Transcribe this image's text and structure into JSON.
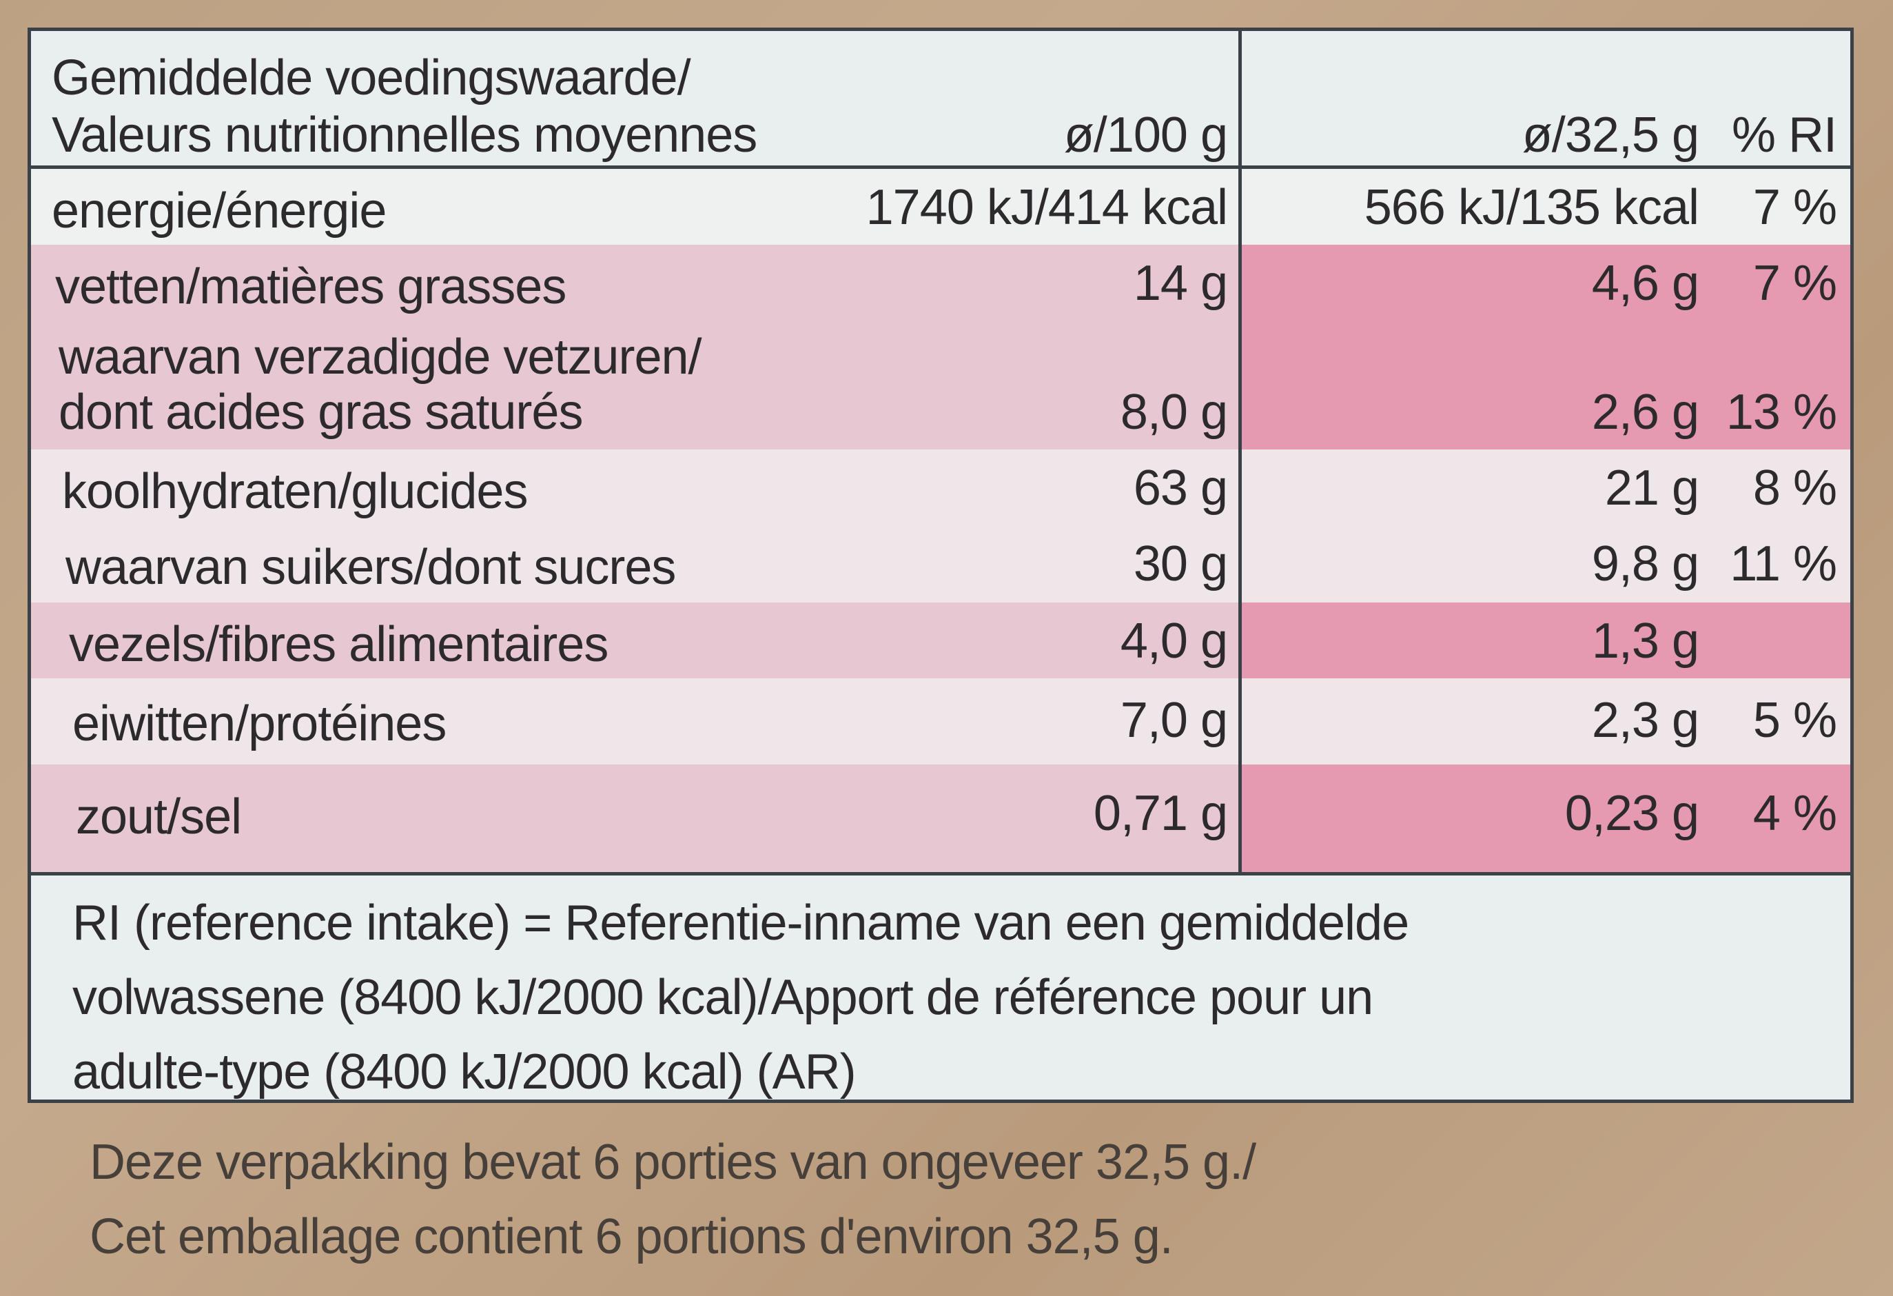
{
  "header": {
    "title_line1": "Gemiddelde voedingswaarde/",
    "title_line2": "Valeurs nutritionnelles moyennes",
    "col_per100": "ø/100 g",
    "col_perportion": "ø/32,5 g",
    "col_ri": "% RI"
  },
  "rows": [
    {
      "label": "energie/énergie",
      "label2": "",
      "per100": "1740 kJ/414 kcal",
      "perportion": "566 kJ/135 kcal",
      "ri": "7 %"
    },
    {
      "label": "vetten/matières grasses",
      "label2": "",
      "per100": "14 g",
      "perportion": "4,6 g",
      "ri": "7 %"
    },
    {
      "label": "waarvan verzadigde vetzuren/",
      "label2": "dont acides gras saturés",
      "per100": "8,0 g",
      "perportion": "2,6 g",
      "ri": "13 %"
    },
    {
      "label": "koolhydraten/glucides",
      "label2": "",
      "per100": "63 g",
      "perportion": "21 g",
      "ri": "8 %"
    },
    {
      "label": "waarvan suikers/dont sucres",
      "label2": "",
      "per100": "30 g",
      "perportion": "9,8 g",
      "ri": "11 %"
    },
    {
      "label": "vezels/fibres alimentaires",
      "label2": "",
      "per100": "4,0 g",
      "perportion": "1,3 g",
      "ri": ""
    },
    {
      "label": "eiwitten/protéines",
      "label2": "",
      "per100": "7,0 g",
      "perportion": "2,3 g",
      "ri": "5 %"
    },
    {
      "label": "zout/sel",
      "label2": "",
      "per100": "0,71 g",
      "perportion": "0,23 g",
      "ri": "4 %"
    }
  ],
  "footer": {
    "line1": "RI (reference intake) = Referentie-inname van een gemiddelde",
    "line2": "volwassene (8400 kJ/2000 kcal)/Apport de référence pour un",
    "line3": "adulte-type (8400 kJ/2000 kcal) (AR)"
  },
  "notes": {
    "line1": "Deze verpakking bevat 6 porties van ongeveer 32,5 g./",
    "line2": "Cet emballage contient 6 portions d'environ 32,5 g."
  },
  "colors": {
    "background": "#c0a486",
    "table": "#e9efee",
    "pink_strong": "#e69ab2",
    "pink_light": "#e6c7d2",
    "border": "#3a4248"
  }
}
